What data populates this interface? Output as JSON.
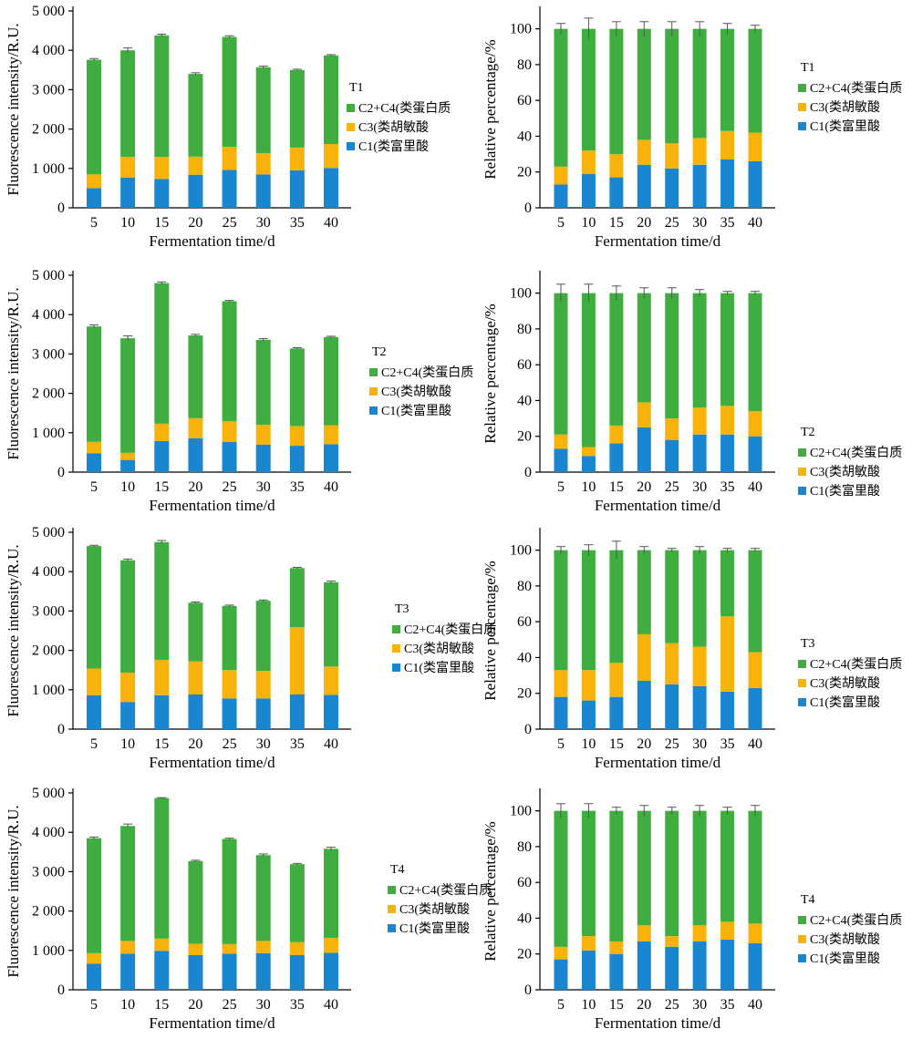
{
  "legend_labels": [
    "C2+C4(类蛋白质",
    "C3(类胡敏酸",
    "C1(类富里酸"
  ],
  "colors": {
    "C1": "#1a86cf",
    "C3": "#f7b30c",
    "C2C4": "#3fad3f",
    "error": "#555555"
  },
  "chart_data": [
    {
      "type": "bar",
      "stacked": true,
      "group": "T1",
      "xlabel": "Fermentation time/d",
      "ylabel": "Fluorescence intensity/R.U.",
      "categories": [
        "5",
        "10",
        "15",
        "20",
        "25",
        "30",
        "35",
        "40"
      ],
      "ylim": [
        0,
        5000
      ],
      "yticks": [
        0,
        1000,
        2000,
        3000,
        4000,
        5000
      ],
      "ytick_labels": [
        "0",
        "1 000",
        "2 000",
        "3 000",
        "4 000",
        "5 000"
      ],
      "series": [
        {
          "name": "C1(类富里酸",
          "key": "C1",
          "values": [
            500,
            770,
            730,
            840,
            960,
            850,
            950,
            1010
          ]
        },
        {
          "name": "C3(类胡敏酸",
          "key": "C3",
          "values": [
            350,
            520,
            560,
            460,
            590,
            540,
            580,
            610
          ]
        },
        {
          "name": "C2+C4(类蛋白质",
          "key": "C2C4",
          "values": [
            2910,
            2710,
            3090,
            2100,
            2790,
            2180,
            1970,
            2250
          ]
        }
      ],
      "error": [
        30,
        60,
        30,
        30,
        30,
        30,
        20,
        20
      ]
    },
    {
      "type": "bar",
      "stacked": true,
      "group": "T1",
      "xlabel": "Fermentation time/d",
      "ylabel": "Relative percentage/%",
      "categories": [
        "5",
        "10",
        "15",
        "20",
        "25",
        "30",
        "35",
        "40"
      ],
      "ylim": [
        0,
        110
      ],
      "yticks": [
        0,
        20,
        40,
        60,
        80,
        100
      ],
      "ytick_labels": [
        "0",
        "20",
        "40",
        "60",
        "80",
        "100"
      ],
      "series": [
        {
          "name": "C1(类富里酸",
          "key": "C1",
          "values": [
            13,
            19,
            17,
            24,
            22,
            24,
            27,
            26
          ]
        },
        {
          "name": "C3(类胡敏酸",
          "key": "C3",
          "values": [
            10,
            13,
            13,
            14,
            14,
            15,
            16,
            16
          ]
        },
        {
          "name": "C2+C4(类蛋白质",
          "key": "C2C4",
          "values": [
            77,
            68,
            70,
            62,
            64,
            61,
            57,
            58
          ]
        }
      ],
      "error": [
        3,
        6,
        4,
        4,
        4,
        4,
        3,
        2
      ]
    },
    {
      "type": "bar",
      "stacked": true,
      "group": "T2",
      "xlabel": "Fermentation time/d",
      "ylabel": "Fluorescence intensity/R.U.",
      "categories": [
        "5",
        "10",
        "15",
        "20",
        "25",
        "30",
        "35",
        "40"
      ],
      "ylim": [
        0,
        5000
      ],
      "yticks": [
        0,
        1000,
        2000,
        3000,
        4000,
        5000
      ],
      "ytick_labels": [
        "0",
        "1 000",
        "2 000",
        "3 000",
        "4 000",
        "5 000"
      ],
      "series": [
        {
          "name": "C1(类富里酸",
          "key": "C1",
          "values": [
            480,
            310,
            790,
            860,
            770,
            700,
            670,
            710
          ]
        },
        {
          "name": "C3(类胡敏酸",
          "key": "C3",
          "values": [
            290,
            180,
            440,
            510,
            520,
            500,
            500,
            480
          ]
        },
        {
          "name": "C2+C4(类蛋白质",
          "key": "C2C4",
          "values": [
            2930,
            2910,
            3570,
            2100,
            3050,
            2160,
            1970,
            2240
          ]
        }
      ],
      "error": [
        40,
        60,
        30,
        30,
        20,
        30,
        20,
        20
      ]
    },
    {
      "type": "bar",
      "stacked": true,
      "group": "T2",
      "xlabel": "Fermentation time/d",
      "ylabel": "Relative percentage/%",
      "categories": [
        "5",
        "10",
        "15",
        "20",
        "25",
        "30",
        "35",
        "40"
      ],
      "ylim": [
        0,
        110
      ],
      "yticks": [
        0,
        20,
        40,
        60,
        80,
        100
      ],
      "ytick_labels": [
        "0",
        "20",
        "40",
        "60",
        "80",
        "100"
      ],
      "series": [
        {
          "name": "C1(类富里酸",
          "key": "C1",
          "values": [
            13,
            9,
            16,
            25,
            18,
            21,
            21,
            20
          ]
        },
        {
          "name": "C3(类胡敏酸",
          "key": "C3",
          "values": [
            8,
            5,
            10,
            14,
            12,
            15,
            16,
            14
          ]
        },
        {
          "name": "C2+C4(类蛋白质",
          "key": "C2C4",
          "values": [
            79,
            86,
            74,
            61,
            70,
            64,
            63,
            66
          ]
        }
      ],
      "error": [
        5,
        5,
        4,
        3,
        3,
        2,
        1,
        1
      ]
    },
    {
      "type": "bar",
      "stacked": true,
      "group": "T3",
      "xlabel": "Fermentation time/d",
      "ylabel": "Fluorescence intensity/R.U.",
      "categories": [
        "5",
        "10",
        "15",
        "20",
        "25",
        "30",
        "35",
        "40"
      ],
      "ylim": [
        0,
        5000
      ],
      "yticks": [
        0,
        1000,
        2000,
        3000,
        4000,
        5000
      ],
      "ytick_labels": [
        "0",
        "1 000",
        "2 000",
        "3 000",
        "4 000",
        "5 000"
      ],
      "series": [
        {
          "name": "C1(类富里酸",
          "key": "C1",
          "values": [
            860,
            690,
            860,
            880,
            780,
            780,
            880,
            870
          ]
        },
        {
          "name": "C3(类胡敏酸",
          "key": "C3",
          "values": [
            680,
            740,
            900,
            840,
            720,
            700,
            1710,
            720
          ]
        },
        {
          "name": "C2+C4(类蛋白质",
          "key": "C2C4",
          "values": [
            3110,
            2860,
            2990,
            1490,
            1630,
            1780,
            1500,
            2140
          ]
        }
      ],
      "error": [
        20,
        30,
        40,
        20,
        20,
        20,
        20,
        30
      ]
    },
    {
      "type": "bar",
      "stacked": true,
      "group": "T3",
      "xlabel": "Fermentation time/d",
      "ylabel": "Relative percentage/%",
      "categories": [
        "5",
        "10",
        "15",
        "20",
        "25",
        "30",
        "35",
        "40"
      ],
      "ylim": [
        0,
        110
      ],
      "yticks": [
        0,
        20,
        40,
        60,
        80,
        100
      ],
      "ytick_labels": [
        "0",
        "20",
        "40",
        "60",
        "80",
        "100"
      ],
      "series": [
        {
          "name": "C1(类富里酸",
          "key": "C1",
          "values": [
            18,
            16,
            18,
            27,
            25,
            24,
            21,
            23
          ]
        },
        {
          "name": "C3(类胡敏酸",
          "key": "C3",
          "values": [
            15,
            17,
            19,
            26,
            23,
            22,
            42,
            20
          ]
        },
        {
          "name": "C2+C4(类蛋白质",
          "key": "C2C4",
          "values": [
            67,
            67,
            63,
            47,
            52,
            54,
            37,
            57
          ]
        }
      ],
      "error": [
        2,
        3,
        5,
        2,
        1,
        2,
        1,
        1
      ]
    },
    {
      "type": "bar",
      "stacked": true,
      "group": "T4",
      "xlabel": "Fermentation time/d",
      "ylabel": "Fluorescence intensity/R.U.",
      "categories": [
        "5",
        "10",
        "15",
        "20",
        "25",
        "30",
        "35",
        "40"
      ],
      "ylim": [
        0,
        5000
      ],
      "yticks": [
        0,
        1000,
        2000,
        3000,
        4000,
        5000
      ],
      "ytick_labels": [
        "0",
        "1 000",
        "2 000",
        "3 000",
        "4 000",
        "5 000"
      ],
      "series": [
        {
          "name": "C1(类富里酸",
          "key": "C1",
          "values": [
            660,
            920,
            990,
            880,
            920,
            930,
            880,
            940
          ]
        },
        {
          "name": "C3(类胡敏酸",
          "key": "C3",
          "values": [
            270,
            320,
            310,
            290,
            240,
            310,
            330,
            380
          ]
        },
        {
          "name": "C2+C4(类蛋白质",
          "key": "C2C4",
          "values": [
            2920,
            2920,
            3570,
            2100,
            2670,
            2180,
            1980,
            2260
          ]
        }
      ],
      "error": [
        30,
        50,
        10,
        20,
        20,
        30,
        20,
        40
      ]
    },
    {
      "type": "bar",
      "stacked": true,
      "group": "T4",
      "xlabel": "Fermentation time/d",
      "ylabel": "Relative percentage/%",
      "categories": [
        "5",
        "10",
        "15",
        "20",
        "25",
        "30",
        "35",
        "40"
      ],
      "ylim": [
        0,
        110
      ],
      "yticks": [
        0,
        20,
        40,
        60,
        80,
        100
      ],
      "ytick_labels": [
        "0",
        "20",
        "40",
        "60",
        "80",
        "100"
      ],
      "series": [
        {
          "name": "C1(类富里酸",
          "key": "C1",
          "values": [
            17,
            22,
            20,
            27,
            24,
            27,
            28,
            26
          ]
        },
        {
          "name": "C3(类胡敏酸",
          "key": "C3",
          "values": [
            7,
            8,
            7,
            9,
            6,
            9,
            10,
            11
          ]
        },
        {
          "name": "C2+C4(类蛋白质",
          "key": "C2C4",
          "values": [
            76,
            70,
            73,
            64,
            70,
            64,
            62,
            63
          ]
        }
      ],
      "error": [
        4,
        4,
        2,
        3,
        2,
        3,
        2,
        3
      ]
    }
  ]
}
